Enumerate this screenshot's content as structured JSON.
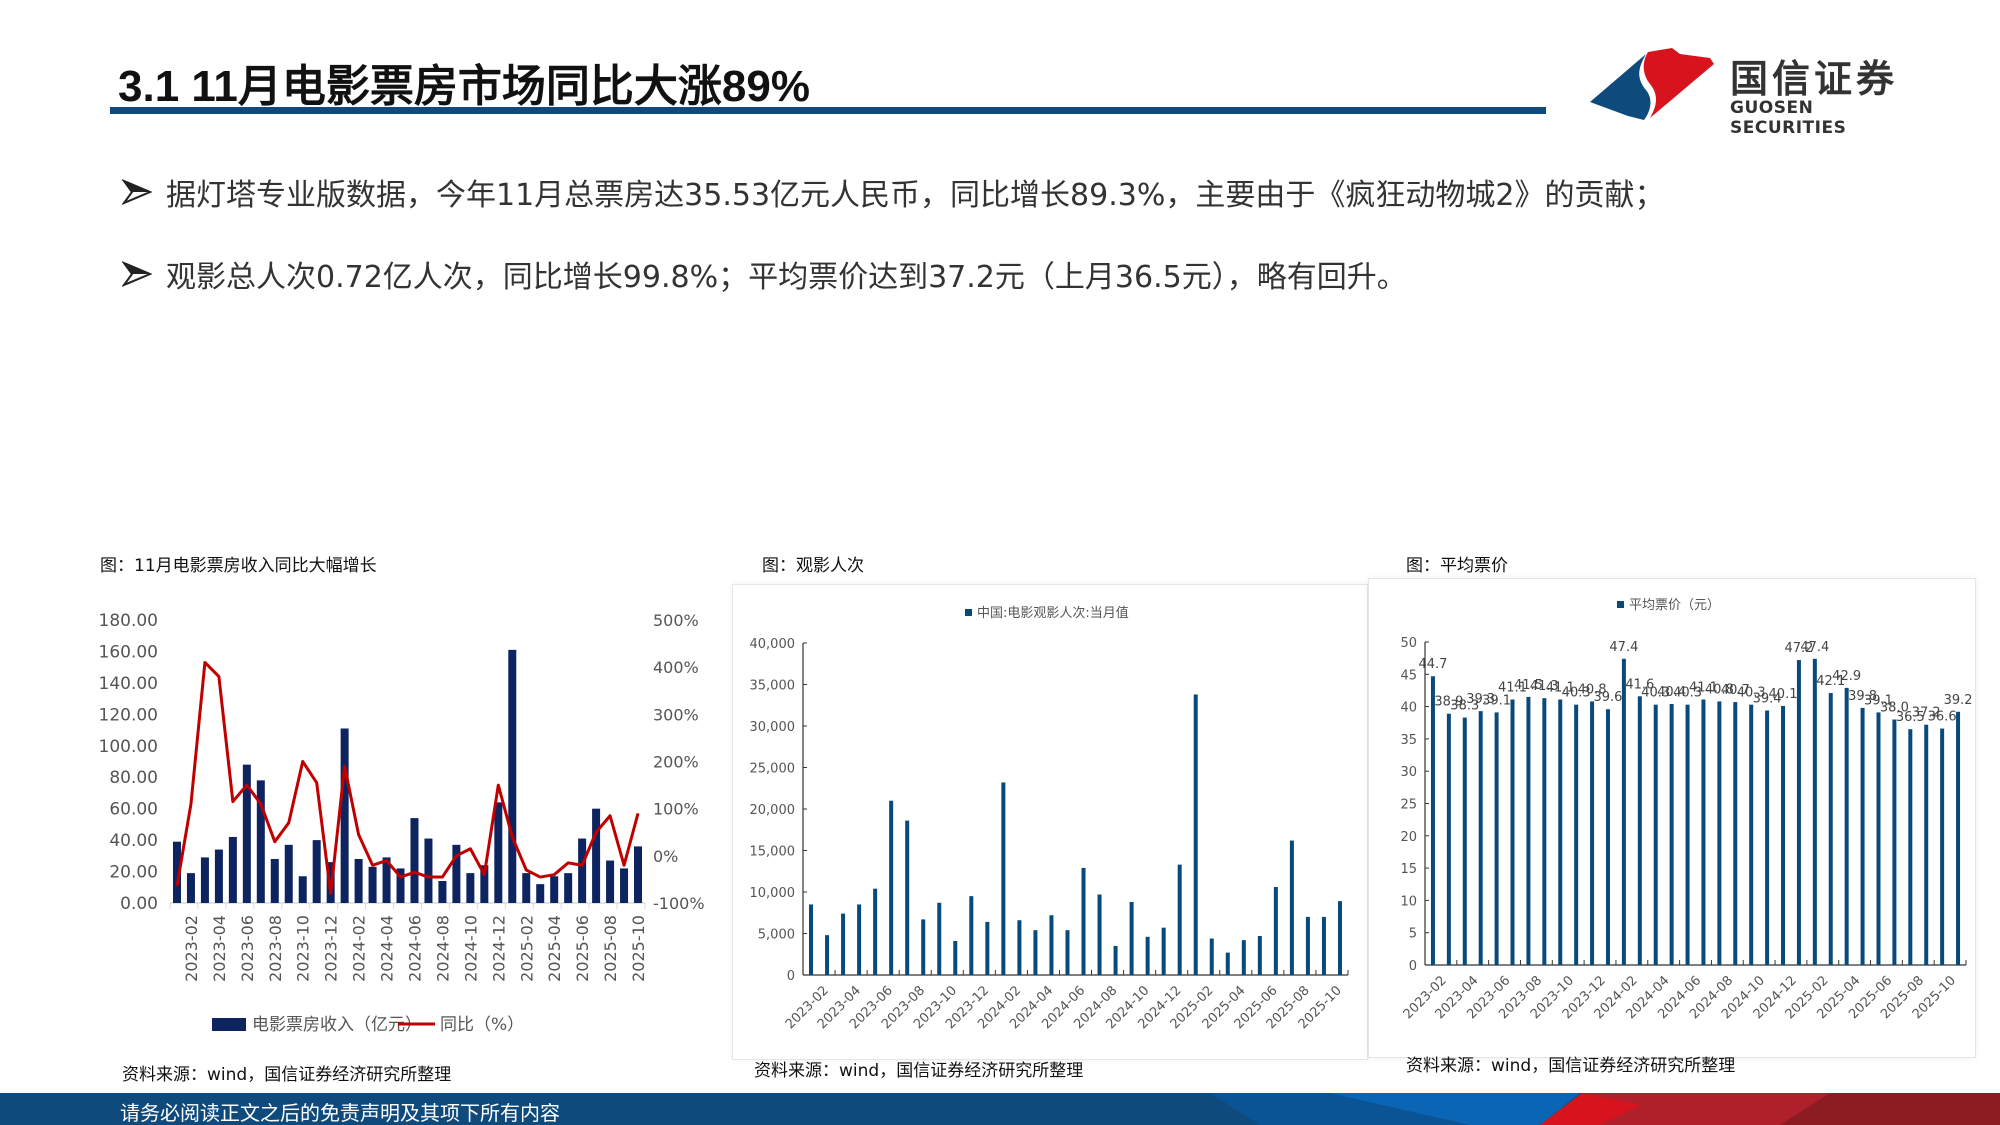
{
  "header": {
    "title": "3.1 11月电影票房市场同比大涨89%",
    "logo_cn": "国信证券",
    "logo_en": "GUOSEN SECURITIES",
    "brand_colors": {
      "blue": "#0f4a7d",
      "red": "#d7141d"
    }
  },
  "bullets": [
    {
      "icon": "arrow-bullet-icon",
      "text": "据灯塔专业版数据，今年11月总票房达35.53亿元人民币，同比增长89.3%，主要由于《疯狂动物城2》的贡献；"
    },
    {
      "icon": "arrow-bullet-icon",
      "text": "观影总人次0.72亿人次，同比增长99.8%；平均票价达到37.2元（上月36.5元），略有回升。"
    }
  ],
  "figures": [
    {
      "caption": "图：11月电影票房收入同比大幅增长",
      "source": "资料来源：wind，国信证券经济研究所整理"
    },
    {
      "caption": "图：观影人次",
      "source": "资料来源：wind，国信证券经济研究所整理"
    },
    {
      "caption": "图：平均票价",
      "source": "资料来源：wind，国信证券经济研究所整理"
    }
  ],
  "footer": {
    "disclaimer": "请务必阅读正文之后的免责声明及其项下所有内容"
  },
  "chart_data": [
    {
      "type": "bar+line",
      "title": "11月电影票房收入同比大幅增长",
      "categories": [
        "2023-01",
        "2023-02",
        "2023-03",
        "2023-04",
        "2023-05",
        "2023-06",
        "2023-07",
        "2023-08",
        "2023-09",
        "2023-10",
        "2023-11",
        "2023-12",
        "2024-01",
        "2024-02",
        "2024-03",
        "2024-04",
        "2024-05",
        "2024-06",
        "2024-07",
        "2024-08",
        "2024-09",
        "2024-10",
        "2024-11",
        "2024-12",
        "2025-01",
        "2025-02",
        "2025-03",
        "2025-04",
        "2025-05",
        "2025-06",
        "2025-07",
        "2025-08",
        "2025-09",
        "2025-10"
      ],
      "x_tick_labels": [
        "2023-02",
        "2023-04",
        "2023-06",
        "2023-08",
        "2023-10",
        "2023-12",
        "2024-02",
        "2024-04",
        "2024-06",
        "2024-08",
        "2024-10",
        "2024-12",
        "2025-02",
        "2025-04",
        "2025-06",
        "2025-08",
        "2025-10"
      ],
      "series": [
        {
          "name": "电影票房收入（亿元）",
          "type": "bar",
          "axis": "left",
          "color": "#0d2460",
          "values": [
            39,
            19,
            29,
            34,
            42,
            88,
            78,
            28,
            37,
            17,
            40,
            26,
            111,
            28,
            23,
            29,
            22,
            54,
            41,
            14,
            37,
            19,
            24,
            64,
            161,
            19,
            12,
            17,
            19,
            41,
            60,
            27,
            22,
            36
          ]
        },
        {
          "name": "同比（%）",
          "type": "line",
          "axis": "right",
          "color": "#c00000",
          "values": [
            -64,
            110,
            410,
            380,
            115,
            150,
            110,
            30,
            70,
            200,
            155,
            -80,
            190,
            45,
            -20,
            -10,
            -45,
            -35,
            -45,
            -45,
            0,
            15,
            -40,
            150,
            40,
            -30,
            -45,
            -40,
            -15,
            -20,
            50,
            85,
            -20,
            90
          ]
        }
      ],
      "left_axis": {
        "ticks": [
          "0.00",
          "20.00",
          "40.00",
          "60.00",
          "80.00",
          "100.00",
          "120.00",
          "140.00",
          "160.00",
          "180.00"
        ],
        "range": [
          0,
          180
        ]
      },
      "right_axis": {
        "ticks": [
          "-100%",
          "0%",
          "100%",
          "200%",
          "300%",
          "400%",
          "500%"
        ],
        "range": [
          -100,
          500
        ]
      },
      "legend": [
        "电影票房收入（亿元）",
        "同比（%）"
      ],
      "legend_position": "bottom"
    },
    {
      "type": "bar",
      "title": "观影人次",
      "legend": [
        "中国:电影观影人次:当月值"
      ],
      "legend_position": "top",
      "color": "#0a4a7a",
      "categories": [
        "2023-01",
        "2023-02",
        "2023-03",
        "2023-04",
        "2023-05",
        "2023-06",
        "2023-07",
        "2023-08",
        "2023-09",
        "2023-10",
        "2023-11",
        "2023-12",
        "2024-01",
        "2024-02",
        "2024-03",
        "2024-04",
        "2024-05",
        "2024-06",
        "2024-07",
        "2024-08",
        "2024-09",
        "2024-10",
        "2024-11",
        "2024-12",
        "2025-01",
        "2025-02",
        "2025-03",
        "2025-04",
        "2025-05",
        "2025-06",
        "2025-07",
        "2025-08",
        "2025-09",
        "2025-10"
      ],
      "x_tick_labels": [
        "2023-02",
        "2023-04",
        "2023-06",
        "2023-08",
        "2023-10",
        "2023-12",
        "2024-02",
        "2024-04",
        "2024-06",
        "2024-08",
        "2024-10",
        "2024-12",
        "2025-02",
        "2025-04",
        "2025-06",
        "2025-08",
        "2025-10"
      ],
      "values": [
        8500,
        4800,
        7400,
        8500,
        10400,
        21000,
        18600,
        6700,
        8700,
        4100,
        9500,
        6400,
        23200,
        6600,
        5400,
        7200,
        5400,
        12900,
        9700,
        3500,
        8800,
        4600,
        5700,
        13300,
        33800,
        4400,
        2700,
        4200,
        4700,
        10600,
        16200,
        7000,
        7000,
        8900
      ],
      "yticks": [
        "0",
        "5,000",
        "10,000",
        "15,000",
        "20,000",
        "25,000",
        "30,000",
        "35,000",
        "40,000"
      ],
      "ylim": [
        0,
        40000
      ]
    },
    {
      "type": "bar",
      "title": "平均票价",
      "legend": [
        "平均票价（元）"
      ],
      "legend_position": "top",
      "color": "#0a4a7a",
      "categories": [
        "2023-01",
        "2023-02",
        "2023-03",
        "2023-04",
        "2023-05",
        "2023-06",
        "2023-07",
        "2023-08",
        "2023-09",
        "2023-10",
        "2023-11",
        "2023-12",
        "2024-01",
        "2024-02",
        "2024-03",
        "2024-04",
        "2024-05",
        "2024-06",
        "2024-07",
        "2024-08",
        "2024-09",
        "2024-10",
        "2024-11",
        "2024-12",
        "2025-01",
        "2025-02",
        "2025-03",
        "2025-04",
        "2025-05",
        "2025-06",
        "2025-07",
        "2025-08",
        "2025-09",
        "2025-10"
      ],
      "x_tick_labels": [
        "2023-02",
        "2023-04",
        "2023-06",
        "2023-08",
        "2023-10",
        "2023-12",
        "2024-02",
        "2024-04",
        "2024-06",
        "2024-08",
        "2024-10",
        "2024-12",
        "2025-02",
        "2025-04",
        "2025-06",
        "2025-08",
        "2025-10"
      ],
      "values": [
        44.7,
        38.9,
        38.3,
        39.3,
        39.1,
        41.1,
        41.5,
        41.3,
        41.1,
        40.3,
        40.8,
        39.6,
        47.4,
        41.6,
        40.3,
        40.4,
        40.3,
        41.1,
        40.8,
        40.7,
        40.3,
        39.4,
        40.1,
        47.2,
        47.4,
        42.1,
        42.9,
        39.8,
        39.1,
        38.0,
        36.5,
        37.2,
        36.6,
        39.2
      ],
      "data_labels": true,
      "yticks": [
        "0",
        "5",
        "10",
        "15",
        "20",
        "25",
        "30",
        "35",
        "40",
        "45",
        "50"
      ],
      "ylim": [
        0,
        50
      ]
    }
  ]
}
